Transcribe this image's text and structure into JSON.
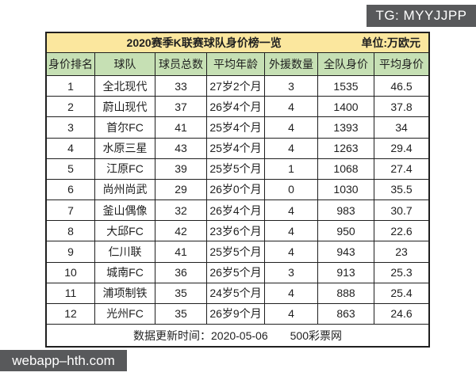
{
  "badges": {
    "tg": "TG: MYYJJPP",
    "site": "webapp–hth.com"
  },
  "colors": {
    "title_bg": "#fbe79e",
    "header_bg": "#c6e0b4",
    "badge_bg": "#58595b",
    "border": "#1f1f1f"
  },
  "chart_data": {
    "type": "table",
    "title": "2020赛季K联赛球队身价榜一览",
    "unit_label": "单位:万欧元",
    "columns": [
      "身价排名",
      "球队",
      "球员总数",
      "平均年龄",
      "外援数量",
      "全队身价",
      "平均身价"
    ],
    "rows": [
      [
        "1",
        "全北现代",
        "33",
        "27岁2个月",
        "3",
        "1535",
        "46.5"
      ],
      [
        "2",
        "蔚山现代",
        "37",
        "26岁4个月",
        "4",
        "1400",
        "37.8"
      ],
      [
        "3",
        "首尔FC",
        "41",
        "25岁4个月",
        "4",
        "1393",
        "34"
      ],
      [
        "4",
        "水原三星",
        "43",
        "25岁4个月",
        "4",
        "1263",
        "29.4"
      ],
      [
        "5",
        "江原FC",
        "39",
        "25岁5个月",
        "1",
        "1068",
        "27.4"
      ],
      [
        "6",
        "尚州尚武",
        "29",
        "26岁0个月",
        "0",
        "1030",
        "35.5"
      ],
      [
        "7",
        "釜山偶像",
        "32",
        "26岁4个月",
        "4",
        "983",
        "30.7"
      ],
      [
        "8",
        "大邱FC",
        "42",
        "23岁6个月",
        "4",
        "950",
        "22.6"
      ],
      [
        "9",
        "仁川联",
        "41",
        "25岁5个月",
        "4",
        "943",
        "23"
      ],
      [
        "10",
        "城南FC",
        "36",
        "26岁5个月",
        "3",
        "913",
        "25.3"
      ],
      [
        "11",
        "浦项制铁",
        "35",
        "24岁5个月",
        "4",
        "888",
        "25.4"
      ],
      [
        "12",
        "光州FC",
        "35",
        "26岁9个月",
        "4",
        "863",
        "24.6"
      ]
    ],
    "footer": {
      "updated_label": "数据更新时间：2020-05-06",
      "source": "500彩票网"
    }
  }
}
